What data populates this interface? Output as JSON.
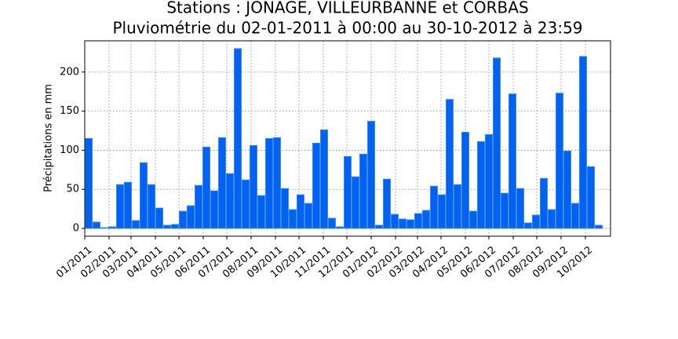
{
  "chart_data": {
    "type": "bar",
    "title": "Stations : JONAGE, VILLEURBANNE et CORBAS",
    "subtitle": "Pluviométrie du 02-01-2011 à 00:00 au 30-10-2012 à 23:59",
    "y_label": "Précipitations en mm",
    "categories": [
      null,
      null,
      null,
      null,
      null,
      null,
      null,
      null,
      null,
      null,
      null,
      null,
      null,
      null,
      null,
      null,
      null,
      null,
      null,
      null,
      null,
      null,
      null,
      null,
      null,
      null,
      null,
      null,
      null,
      null,
      null,
      null,
      null,
      null,
      null,
      null,
      null,
      null,
      null,
      null,
      null,
      null,
      null,
      null,
      null,
      null,
      null,
      null,
      null,
      null,
      null,
      null,
      null,
      null,
      null,
      null,
      null,
      null,
      null,
      null,
      null,
      null,
      null,
      null,
      null,
      null
    ],
    "values": [
      115,
      8,
      1,
      2,
      56,
      59,
      10,
      84,
      56,
      26,
      4,
      5,
      22,
      29,
      55,
      104,
      48,
      116,
      70,
      230,
      62,
      106,
      42,
      115,
      116,
      51,
      24,
      43,
      32,
      109,
      126,
      13,
      2,
      92,
      66,
      95,
      137,
      4,
      63,
      18,
      12,
      11,
      19,
      23,
      54,
      43,
      165,
      56,
      123,
      22,
      111,
      120,
      218,
      45,
      172,
      51,
      7,
      17,
      64,
      24,
      173,
      99,
      32,
      220,
      79,
      4
    ],
    "color": "#0062f5",
    "edge_color": "#3c8ad8",
    "xlim": [
      0,
      67
    ],
    "xticks": [
      {
        "value": 0,
        "label": "01/2011"
      },
      {
        "value": 3.1,
        "label": "02/2011"
      },
      {
        "value": 5.9,
        "label": "03/2011"
      },
      {
        "value": 9,
        "label": "04/2011"
      },
      {
        "value": 12,
        "label": "05/2011"
      },
      {
        "value": 15.1,
        "label": "06/2011"
      },
      {
        "value": 18.1,
        "label": "07/2011"
      },
      {
        "value": 21.2,
        "label": "08/2011"
      },
      {
        "value": 24.3,
        "label": "09/2011"
      },
      {
        "value": 27.3,
        "label": "10/2011"
      },
      {
        "value": 30.4,
        "label": "11/2011"
      },
      {
        "value": 33.4,
        "label": "12/2011"
      },
      {
        "value": 36.5,
        "label": "01/2012"
      },
      {
        "value": 39.6,
        "label": "02/2012"
      },
      {
        "value": 42.4,
        "label": "03/2012"
      },
      {
        "value": 45.4,
        "label": "04/2012"
      },
      {
        "value": 48.5,
        "label": "05/2012"
      },
      {
        "value": 51.5,
        "label": "06/2012"
      },
      {
        "value": 54.6,
        "label": "07/2012"
      },
      {
        "value": 57.6,
        "label": "08/2012"
      },
      {
        "value": 60.7,
        "label": "09/2012"
      },
      {
        "value": 63.8,
        "label": "10/2012"
      }
    ],
    "ylim": [
      -10,
      240
    ],
    "yticks": [
      0,
      50,
      100,
      150,
      200
    ],
    "grid": true
  }
}
